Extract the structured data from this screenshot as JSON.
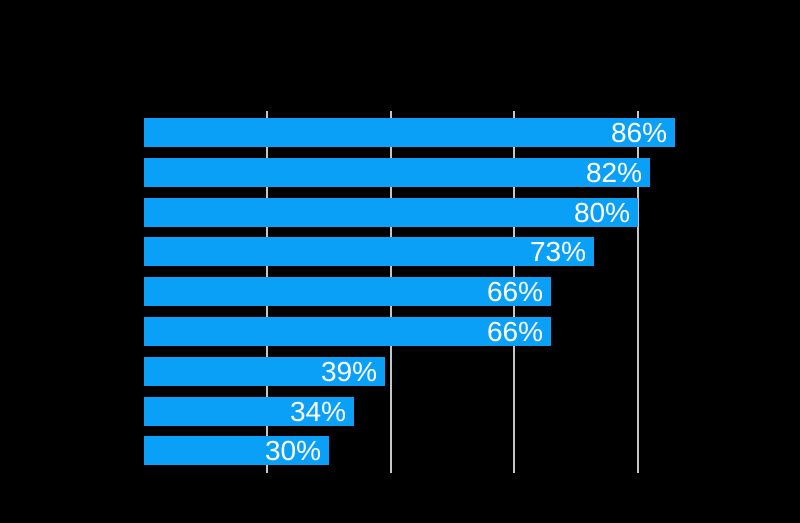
{
  "chart": {
    "title": "",
    "background_color": "#000000",
    "bar_color": "#0BA0F8",
    "grid_color": "#C6C6C6",
    "label_color": "#FFFFFF"
  },
  "chart_data": {
    "type": "bar",
    "orientation": "horizontal",
    "title": "",
    "xlabel": "",
    "ylabel": "",
    "categories": [
      "",
      "",
      "",
      "",
      "",
      "",
      "",
      "",
      ""
    ],
    "values": [
      86,
      82,
      80,
      73,
      66,
      66,
      39,
      34,
      30
    ],
    "bar_labels": [
      "86%",
      "82%",
      "80%",
      "73%",
      "66%",
      "66%",
      "39%",
      "34%",
      "30%"
    ],
    "xlim": [
      0,
      100
    ],
    "x_gridlines": [
      20,
      40,
      60,
      80
    ],
    "grid": true,
    "legend": false,
    "value_label_position": "inside-end"
  }
}
